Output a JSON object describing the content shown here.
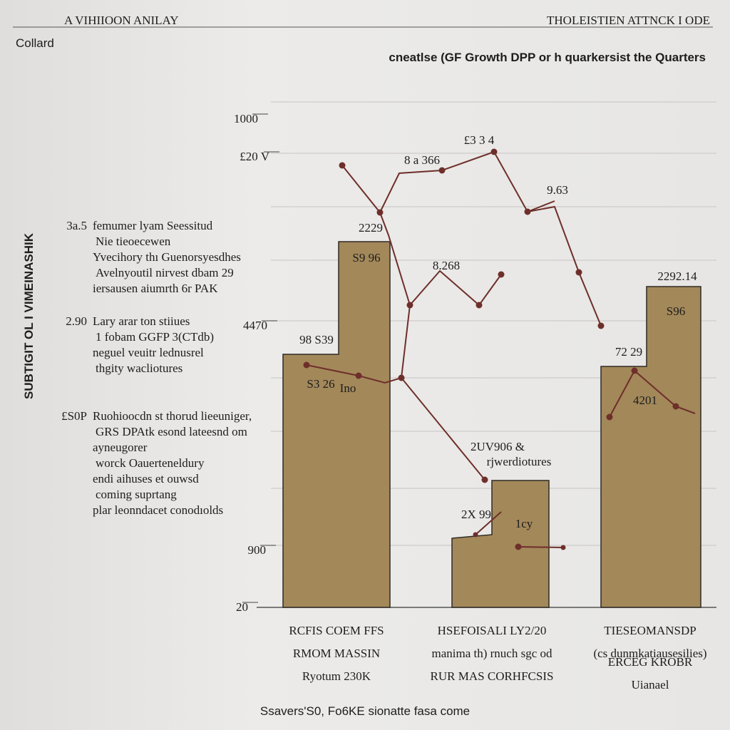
{
  "header": {
    "left": "A VIHIIOON ANILAY",
    "right": "THOLEISTIEN ATTNCK I ODE",
    "brand": "Collard"
  },
  "title": "cneatlse (GF Growth DPP or h quarkersist the Quarters",
  "y_axis_title": "SUBTIGIT OL I VIMEINASHIK",
  "axis_labels": [
    "1000",
    "£20 V",
    "4470",
    "900",
    "20"
  ],
  "notes": [
    {
      "number": "3a.5",
      "lines": [
        "femumer lyam Seessitud",
        "Nie tieoecewen",
        "Yvecihory thı Guenorsyesdhes",
        "Avelnyoutil nirvest dbam 29",
        "iersausen aiumrth 6r PAK"
      ]
    },
    {
      "number": "2.90",
      "lines": [
        "Lary arar ton stiiues",
        "1 fobam GGFP 3(CTdb)",
        "neguel veuitr lednusrel",
        "thgity wacliotures"
      ]
    },
    {
      "number": "£S0P",
      "lines": [
        "Ruohioocdn st thorud lieeuniger,",
        "GRS DPAtk esond lateesnd om",
        "ayneugorer",
        "worck Oauerteneldury",
        "endi aihuses et ouwsd",
        "coming suprtang",
        "plar leonndacet conodıolds"
      ]
    }
  ],
  "data_labels": [
    "£3 3 4",
    "8 a 366",
    "9.63",
    "2229",
    "S9 96",
    "8.268",
    "2292.14",
    "S96",
    "98 S39",
    "S3 26",
    "Ino",
    "72 29",
    "4201",
    "2UV906 &",
    "rjwerdiotures",
    "2X 99",
    "1cy"
  ],
  "categories": [
    [
      "RCFIS COEM FFS",
      "RMOM MASSIN",
      "Ryotum 230K"
    ],
    [
      "HSEFOISALI LY2/20",
      "manima th) rnuch sgc od",
      "RUR MAS CORHFCSIS"
    ],
    [
      "TIESEOMANSDP",
      "(cs dunmkatiausesilies)",
      "ERCEG KROBR",
      "Uianael"
    ]
  ],
  "footer": "Ssavers'S0, Fo6KE sionatte fasa come"
}
